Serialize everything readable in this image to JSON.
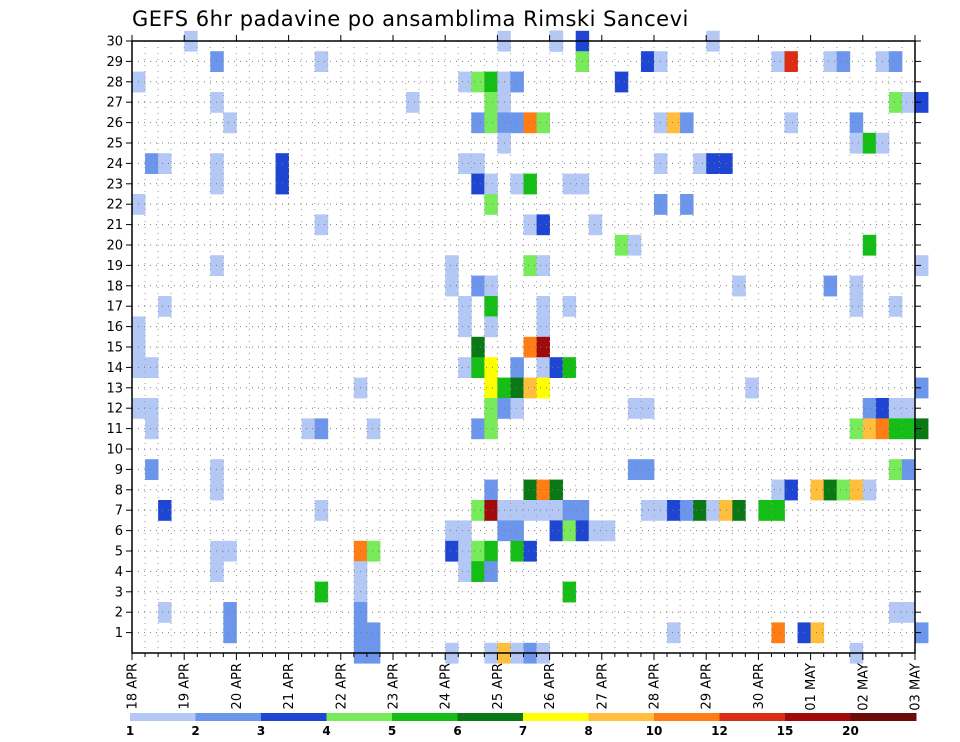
{
  "chart_data": {
    "type": "heatmap",
    "title": "GEFS 6hr padavine po ansamblima Rimski Sancevi",
    "xlabel": "",
    "ylabel": "",
    "x_range_days": [
      0,
      15
    ],
    "x_steps_per_day": 4,
    "y_range": [
      0,
      30
    ],
    "y_ticks": [
      "1",
      "2",
      "3",
      "4",
      "5",
      "6",
      "7",
      "8",
      "9",
      "10",
      "11",
      "12",
      "13",
      "14",
      "15",
      "16",
      "17",
      "18",
      "19",
      "20",
      "21",
      "22",
      "23",
      "24",
      "25",
      "26",
      "27",
      "28",
      "29",
      "30"
    ],
    "x_tick_labels": [
      "18 APR",
      "19 APR",
      "20 APR",
      "21 APR",
      "22 APR",
      "23 APR",
      "24 APR",
      "25 APR",
      "26 APR",
      "27 APR",
      "28 APR",
      "29 APR",
      "30 APR",
      "01 MAY",
      "02 MAY",
      "03 MAY"
    ],
    "grid": true,
    "legend": {
      "placement": "bottom",
      "labels": [
        "1",
        "2",
        "3",
        "4",
        "5",
        "6",
        "7",
        "8",
        "10",
        "12",
        "15",
        "20"
      ],
      "colors": [
        "#b4c8f5",
        "#6c96eb",
        "#1e46d2",
        "#78eb5a",
        "#14be14",
        "#0a7814",
        "#ffff00",
        "#ffbe3c",
        "#ff7d14",
        "#dc2d14",
        "#a00a0a",
        "#6e0a0a"
      ]
    },
    "cells": [
      [
        1,
        30,
        0
      ],
      [
        7,
        30,
        0
      ],
      [
        8,
        30,
        2
      ],
      [
        8.5,
        30,
        2
      ],
      [
        11,
        30,
        0
      ],
      [
        8,
        30,
        0
      ],
      [
        1.5,
        29,
        1
      ],
      [
        3.5,
        29,
        0
      ],
      [
        8.5,
        29,
        3
      ],
      [
        9.75,
        29,
        2
      ],
      [
        10,
        29,
        0
      ],
      [
        12.25,
        29,
        0
      ],
      [
        12.5,
        29,
        9
      ],
      [
        13.25,
        29,
        0
      ],
      [
        13.5,
        29,
        1
      ],
      [
        14.25,
        29,
        0
      ],
      [
        14.5,
        29,
        1
      ],
      [
        0,
        28,
        0
      ],
      [
        6.25,
        28,
        0
      ],
      [
        6.5,
        28,
        3
      ],
      [
        6.75,
        28,
        4
      ],
      [
        7,
        28,
        0
      ],
      [
        7.25,
        28,
        1
      ],
      [
        9.25,
        28,
        2
      ],
      [
        1.5,
        27,
        0
      ],
      [
        5.25,
        27,
        0
      ],
      [
        6.75,
        27,
        3
      ],
      [
        7,
        27,
        0
      ],
      [
        14.5,
        27,
        3
      ],
      [
        14.75,
        27,
        0
      ],
      [
        15,
        27,
        2
      ],
      [
        1.75,
        26,
        0
      ],
      [
        6.5,
        26,
        1
      ],
      [
        6.75,
        26,
        3
      ],
      [
        7,
        26,
        1
      ],
      [
        7.25,
        26,
        1
      ],
      [
        7.5,
        26,
        8
      ],
      [
        7.75,
        26,
        3
      ],
      [
        10,
        26,
        0
      ],
      [
        10.25,
        26,
        7
      ],
      [
        10.5,
        26,
        1
      ],
      [
        12.5,
        26,
        0
      ],
      [
        13.75,
        26,
        1
      ],
      [
        7,
        25,
        0
      ],
      [
        13.75,
        25,
        0
      ],
      [
        14,
        25,
        4
      ],
      [
        14.25,
        25,
        0
      ],
      [
        0.25,
        24,
        1
      ],
      [
        0.5,
        24,
        0
      ],
      [
        1.5,
        24,
        0
      ],
      [
        2.75,
        24,
        2
      ],
      [
        6.25,
        24,
        0
      ],
      [
        6.5,
        24,
        0
      ],
      [
        10,
        24,
        0
      ],
      [
        10.75,
        24,
        0
      ],
      [
        11,
        24,
        2
      ],
      [
        11.25,
        24,
        2
      ],
      [
        1.5,
        23,
        0
      ],
      [
        2.75,
        23,
        2
      ],
      [
        6.5,
        23,
        2
      ],
      [
        6.75,
        23,
        0
      ],
      [
        7.25,
        23,
        0
      ],
      [
        7.5,
        23,
        4
      ],
      [
        8.25,
        23,
        0
      ],
      [
        8.5,
        23,
        0
      ],
      [
        0,
        22,
        0
      ],
      [
        6.75,
        22,
        3
      ],
      [
        10,
        22,
        1
      ],
      [
        10.5,
        22,
        1
      ],
      [
        3.5,
        21,
        0
      ],
      [
        7.5,
        21,
        0
      ],
      [
        7.75,
        21,
        2
      ],
      [
        8.75,
        21,
        0
      ],
      [
        9.25,
        20,
        3
      ],
      [
        9.5,
        20,
        0
      ],
      [
        14,
        20,
        4
      ],
      [
        1.5,
        19,
        0
      ],
      [
        6,
        19,
        0
      ],
      [
        7.5,
        19,
        3
      ],
      [
        7.75,
        19,
        0
      ],
      [
        15,
        19,
        0
      ],
      [
        6,
        18,
        0
      ],
      [
        6.5,
        18,
        1
      ],
      [
        6.75,
        18,
        0
      ],
      [
        11.5,
        18,
        0
      ],
      [
        13.25,
        18,
        1
      ],
      [
        13.75,
        18,
        0
      ],
      [
        0.5,
        17,
        0
      ],
      [
        6.25,
        17,
        0
      ],
      [
        6.75,
        17,
        4
      ],
      [
        7.75,
        17,
        0
      ],
      [
        8.25,
        17,
        0
      ],
      [
        13.75,
        17,
        0
      ],
      [
        14.5,
        17,
        0
      ],
      [
        0,
        16,
        0
      ],
      [
        6.25,
        16,
        0
      ],
      [
        6.75,
        16,
        0
      ],
      [
        7.75,
        16,
        0
      ],
      [
        0,
        15,
        0
      ],
      [
        6.5,
        15,
        5
      ],
      [
        7.5,
        15,
        8
      ],
      [
        7.75,
        15,
        10
      ],
      [
        0,
        14,
        0
      ],
      [
        0.25,
        14,
        0
      ],
      [
        6.25,
        14,
        0
      ],
      [
        6.5,
        14,
        4
      ],
      [
        6.75,
        14,
        6
      ],
      [
        7.25,
        14,
        1
      ],
      [
        7.75,
        14,
        0
      ],
      [
        8,
        14,
        2
      ],
      [
        8.25,
        14,
        4
      ],
      [
        4.25,
        13,
        0
      ],
      [
        6.75,
        13,
        6
      ],
      [
        7,
        13,
        4
      ],
      [
        7.25,
        13,
        5
      ],
      [
        7.5,
        13,
        7
      ],
      [
        7.75,
        13,
        6
      ],
      [
        11.75,
        13,
        0
      ],
      [
        15,
        13,
        1
      ],
      [
        0,
        12,
        0
      ],
      [
        0.25,
        12,
        0
      ],
      [
        6.75,
        12,
        0
      ],
      [
        6.75,
        12,
        3
      ],
      [
        7,
        12,
        1
      ],
      [
        7.25,
        12,
        0
      ],
      [
        9.5,
        12,
        0
      ],
      [
        9.75,
        12,
        0
      ],
      [
        14,
        12,
        1
      ],
      [
        14.25,
        12,
        2
      ],
      [
        14.5,
        12,
        0
      ],
      [
        14.75,
        12,
        0
      ],
      [
        0.25,
        11,
        0
      ],
      [
        3.25,
        11,
        0
      ],
      [
        3.5,
        11,
        1
      ],
      [
        4.5,
        11,
        0
      ],
      [
        6.5,
        11,
        1
      ],
      [
        6.75,
        11,
        3
      ],
      [
        13.75,
        11,
        3
      ],
      [
        14,
        11,
        7
      ],
      [
        14.25,
        11,
        8
      ],
      [
        14.5,
        11,
        4
      ],
      [
        14.75,
        11,
        4
      ],
      [
        15,
        11,
        5
      ],
      [
        0.25,
        9,
        1
      ],
      [
        1.5,
        9,
        0
      ],
      [
        9.5,
        9,
        1
      ],
      [
        9.75,
        9,
        1
      ],
      [
        14.5,
        9,
        3
      ],
      [
        14.75,
        9,
        1
      ],
      [
        1.5,
        8,
        0
      ],
      [
        6.75,
        8,
        1
      ],
      [
        7.5,
        8,
        5
      ],
      [
        7.75,
        8,
        8
      ],
      [
        8,
        8,
        5
      ],
      [
        12.25,
        8,
        0
      ],
      [
        12.5,
        8,
        2
      ],
      [
        13,
        8,
        7
      ],
      [
        13.25,
        8,
        5
      ],
      [
        13.5,
        8,
        3
      ],
      [
        13.75,
        8,
        7
      ],
      [
        14,
        8,
        0
      ],
      [
        0.5,
        7,
        2
      ],
      [
        3.5,
        7,
        0
      ],
      [
        6.5,
        7,
        3
      ],
      [
        6.75,
        7,
        10
      ],
      [
        7,
        7,
        0
      ],
      [
        7.25,
        7,
        0
      ],
      [
        7.5,
        7,
        0
      ],
      [
        7.75,
        7,
        0
      ],
      [
        8,
        7,
        0
      ],
      [
        8.25,
        7,
        1
      ],
      [
        8.5,
        7,
        1
      ],
      [
        9.75,
        7,
        0
      ],
      [
        10,
        7,
        0
      ],
      [
        10.25,
        7,
        2
      ],
      [
        10.5,
        7,
        1
      ],
      [
        10.75,
        7,
        5
      ],
      [
        11,
        7,
        0
      ],
      [
        11.25,
        7,
        7
      ],
      [
        11.5,
        7,
        5
      ],
      [
        12,
        7,
        4
      ],
      [
        12.25,
        7,
        4
      ],
      [
        6,
        6,
        0
      ],
      [
        6.25,
        6,
        0
      ],
      [
        7,
        6,
        1
      ],
      [
        7.25,
        6,
        1
      ],
      [
        8,
        6,
        2
      ],
      [
        8.25,
        6,
        3
      ],
      [
        8.5,
        6,
        2
      ],
      [
        8.75,
        6,
        0
      ],
      [
        9,
        6,
        0
      ],
      [
        1.5,
        5,
        0
      ],
      [
        1.75,
        5,
        0
      ],
      [
        4.25,
        5,
        8
      ],
      [
        4.5,
        5,
        3
      ],
      [
        6,
        5,
        2
      ],
      [
        6.25,
        5,
        0
      ],
      [
        6.5,
        5,
        3
      ],
      [
        6.75,
        5,
        4
      ],
      [
        7.25,
        5,
        4
      ],
      [
        7.5,
        5,
        2
      ],
      [
        1.5,
        4,
        0
      ],
      [
        4.25,
        4,
        0
      ],
      [
        6.25,
        4,
        0
      ],
      [
        6.5,
        4,
        4
      ],
      [
        6.75,
        4,
        1
      ],
      [
        3.5,
        3,
        4
      ],
      [
        4.25,
        3,
        0
      ],
      [
        8.25,
        3,
        4
      ],
      [
        0.5,
        2,
        0
      ],
      [
        1.75,
        2,
        1
      ],
      [
        4.25,
        2,
        1
      ],
      [
        14.5,
        2,
        0
      ],
      [
        14.75,
        2,
        0
      ],
      [
        1.75,
        1,
        1
      ],
      [
        4.25,
        1,
        1
      ],
      [
        4.5,
        1,
        1
      ],
      [
        10.25,
        1,
        0
      ],
      [
        12.25,
        1,
        8
      ],
      [
        12.75,
        1,
        2
      ],
      [
        13,
        1,
        7
      ],
      [
        15,
        1,
        1
      ],
      [
        4.25,
        0,
        1
      ],
      [
        4.5,
        0,
        1
      ],
      [
        6,
        0,
        0
      ],
      [
        6.75,
        0,
        0
      ],
      [
        7,
        0,
        7
      ],
      [
        7.25,
        0,
        0
      ],
      [
        7.5,
        0,
        1
      ],
      [
        7.75,
        0,
        0
      ],
      [
        13.75,
        0,
        0
      ]
    ]
  }
}
